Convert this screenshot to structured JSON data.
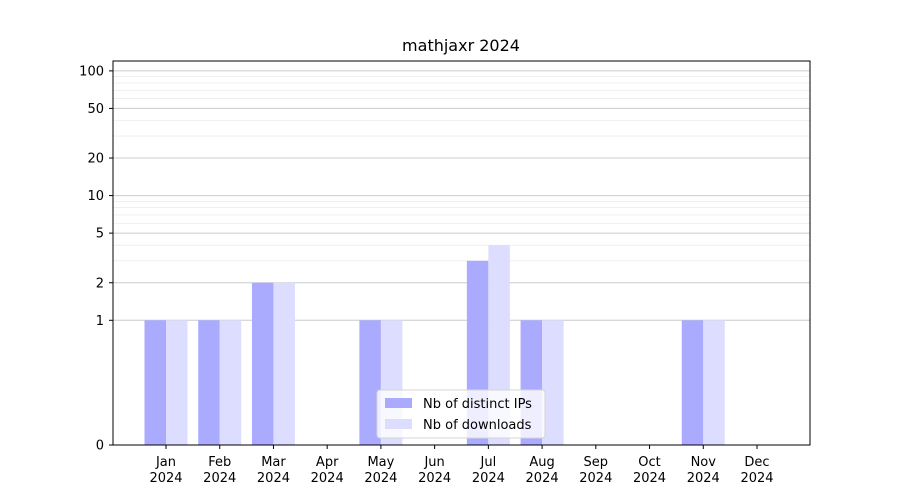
{
  "chart_data": {
    "type": "bar",
    "title": "mathjaxr 2024",
    "xlabel": "",
    "ylabel": "",
    "categories": [
      [
        "Jan",
        "2024"
      ],
      [
        "Feb",
        "2024"
      ],
      [
        "Mar",
        "2024"
      ],
      [
        "Apr",
        "2024"
      ],
      [
        "May",
        "2024"
      ],
      [
        "Jun",
        "2024"
      ],
      [
        "Jul",
        "2024"
      ],
      [
        "Aug",
        "2024"
      ],
      [
        "Sep",
        "2024"
      ],
      [
        "Oct",
        "2024"
      ],
      [
        "Nov",
        "2024"
      ],
      [
        "Dec",
        "2024"
      ]
    ],
    "series": [
      {
        "name": "Nb of distinct IPs",
        "color": "#aaaaff",
        "values": [
          1,
          1,
          2,
          0,
          1,
          0,
          3,
          1,
          0,
          0,
          1,
          0
        ]
      },
      {
        "name": "Nb of downloads",
        "color": "#ddddff",
        "values": [
          1,
          1,
          2,
          0,
          1,
          0,
          4,
          1,
          0,
          0,
          1,
          0
        ]
      }
    ],
    "yscale": "symlog",
    "ylim": [
      0,
      120
    ],
    "yticks": [
      {
        "value": 0,
        "label": "0"
      },
      {
        "value": 1,
        "label": "1"
      },
      {
        "value": 2,
        "label": "2"
      },
      {
        "value": 5,
        "label": "5"
      },
      {
        "value": 10,
        "label": "10"
      },
      {
        "value": 20,
        "label": "20"
      },
      {
        "value": 50,
        "label": "50"
      },
      {
        "value": 100,
        "label": "100"
      }
    ],
    "grid": true,
    "legend_position": "bottom-center"
  }
}
